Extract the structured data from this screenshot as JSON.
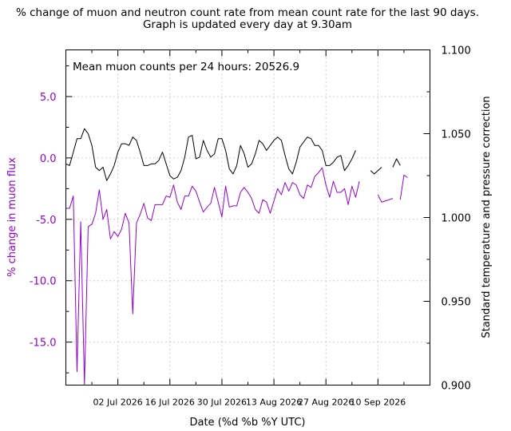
{
  "chart_data": {
    "type": "line",
    "title": "% change of muon and neutron count rate from mean count rate for the last 90 days.",
    "subtitle": "Graph is updated every day at 9.30am",
    "annotation": "Mean muon counts per 24 hours: 20526.9",
    "xlabel": "Date (%d %b %Y UTC)",
    "ylabel_left": "% change in muon flux",
    "ylabel_right": "Standard temperature and pressure correction",
    "xlim": [
      "2026-06-18",
      "2026-09-24"
    ],
    "x_ticks": [
      "2026-07-02",
      "2026-07-16",
      "2026-07-30",
      "2026-08-13",
      "2026-08-27",
      "2026-09-10"
    ],
    "x_tick_labels": [
      "02 Jul 2026",
      "16 Jul 2026",
      "30 Jul 2026",
      "13 Aug 2026",
      "27 Aug 2026",
      "10 Sep 2026"
    ],
    "ylim_left": [
      -18.5,
      8.8
    ],
    "yticks_left": [
      -15.0,
      -10.0,
      -5.0,
      0.0,
      5.0
    ],
    "ytick_labels_left": [
      "-15.0",
      "-10.0",
      "-5.0",
      "0.0",
      "5.0"
    ],
    "ylim_right": [
      0.9,
      1.1
    ],
    "yticks_right": [
      0.9,
      0.95,
      1.0,
      1.05,
      1.1
    ],
    "ytick_labels_right": [
      "0.900",
      "0.950",
      "1.000",
      "1.050",
      "1.100"
    ],
    "grid": true,
    "colors": {
      "muon": "#9400d3",
      "correction": "#000000",
      "left_axis_text": "#9400d3",
      "grid": "#a0a0a0"
    },
    "series": [
      {
        "axis": "left",
        "color": "#9400d3",
        "start_date": "2026-06-18",
        "values": [
          -4.1,
          -4.1,
          -3.1,
          -17.4,
          -5.2,
          -18.5,
          -5.6,
          -5.4,
          -4.5,
          -2.6,
          -5.0,
          -4.2,
          -6.6,
          -6.0,
          -6.4,
          -5.8,
          -4.5,
          -5.3,
          -12.7,
          -5.3,
          -4.6,
          -3.7,
          -4.9,
          -5.1,
          -3.8,
          -3.8,
          -3.8,
          -3.1,
          -3.2,
          -2.2,
          -3.6,
          -4.2,
          -3.1,
          -3.1,
          -2.3,
          -2.7,
          -3.6,
          -4.4,
          -4.0,
          -3.7,
          -2.4,
          -3.6,
          -4.8,
          -2.3,
          -4.0,
          -3.9,
          -3.9,
          -2.8,
          -2.4,
          -2.8,
          -3.3,
          -4.2,
          -4.5,
          -3.4,
          -3.6,
          -4.5,
          -3.5,
          -2.5,
          -3.0,
          -2.0,
          -2.7,
          -2.0,
          -2.2,
          -3.0,
          -3.3,
          -2.2,
          -2.4,
          -1.5,
          -1.2,
          -0.8,
          -2.2,
          -3.2,
          -1.9,
          -2.8,
          -2.8,
          -2.5,
          -3.8,
          -2.3,
          -3.2,
          -1.9,
          null,
          null,
          null,
          null,
          -3.0,
          -3.6,
          -3.5,
          -3.4,
          -3.3,
          null,
          -3.4,
          -1.4,
          -1.6
        ]
      },
      {
        "axis": "right",
        "color": "#000000",
        "start_date": "2026-06-18",
        "values": [
          1.032,
          1.031,
          1.039,
          1.047,
          1.047,
          1.053,
          1.05,
          1.043,
          1.03,
          1.028,
          1.03,
          1.022,
          1.026,
          1.031,
          1.039,
          1.044,
          1.044,
          1.043,
          1.048,
          1.046,
          1.039,
          1.031,
          1.031,
          1.032,
          1.032,
          1.034,
          1.039,
          1.032,
          1.025,
          1.023,
          1.024,
          1.028,
          1.036,
          1.048,
          1.049,
          1.035,
          1.036,
          1.046,
          1.04,
          1.036,
          1.038,
          1.047,
          1.047,
          1.04,
          1.029,
          1.026,
          1.031,
          1.043,
          1.038,
          1.03,
          1.032,
          1.038,
          1.046,
          1.044,
          1.04,
          1.043,
          1.046,
          1.048,
          1.046,
          1.037,
          1.029,
          1.026,
          1.033,
          1.042,
          1.045,
          1.048,
          1.047,
          1.043,
          1.043,
          1.04,
          1.031,
          1.031,
          1.033,
          1.036,
          1.037,
          1.028,
          1.031,
          1.035,
          1.04,
          null,
          null,
          null,
          1.028,
          1.026,
          1.028,
          1.03,
          null,
          null,
          1.03,
          1.035,
          1.031
        ]
      }
    ]
  }
}
